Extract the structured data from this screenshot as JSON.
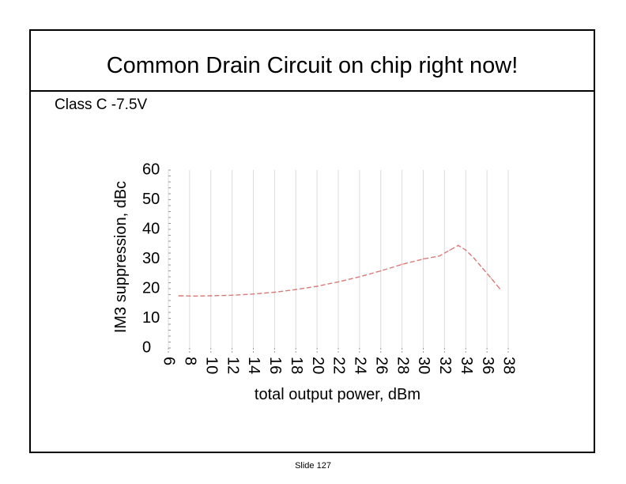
{
  "slide": {
    "title": "Common Drain Circuit on chip right now!",
    "subtitle": "Class C -7.5V",
    "footer": "Slide 127"
  },
  "colors": {
    "series": "#d87a78",
    "grid": "#dcdcdc",
    "text": "#000000",
    "frame": "#000000"
  },
  "chart_data": {
    "type": "line",
    "title": "",
    "xlabel": "total output power, dBm",
    "ylabel": "IM3 suppression, dBc",
    "xlim": [
      6,
      38
    ],
    "ylim": [
      0,
      60
    ],
    "xticks": [
      6,
      8,
      10,
      12,
      14,
      16,
      18,
      20,
      22,
      24,
      26,
      28,
      30,
      32,
      34,
      36,
      38
    ],
    "yticks": [
      0,
      10,
      20,
      30,
      40,
      50,
      60
    ],
    "grid": true,
    "series": [
      {
        "line_style": "dashed",
        "x": [
          7.0,
          8.5,
          10,
          12,
          14,
          16,
          18,
          20,
          22,
          24,
          26,
          28,
          30,
          31.5,
          32.5,
          33.3,
          34,
          34.8,
          35.6,
          36.4,
          37.2
        ],
        "y": [
          17.6,
          17.5,
          17.6,
          17.8,
          18.2,
          18.8,
          19.7,
          20.8,
          22.3,
          24.0,
          26.0,
          28.2,
          30.0,
          31.0,
          33.0,
          34.6,
          33.0,
          30.2,
          26.8,
          23.5,
          20.0
        ]
      }
    ]
  }
}
